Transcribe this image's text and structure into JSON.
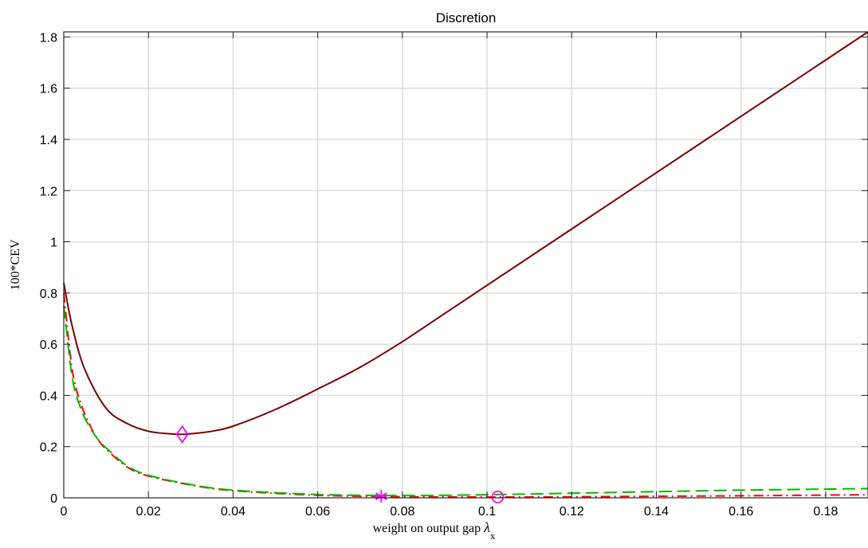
{
  "chart_data": {
    "type": "line",
    "title": "Discretion",
    "xlabel_prefix": "weight on output gap ",
    "xlabel_symbol": "λ",
    "xlabel_subscript": "x",
    "ylabel": "100*CEV",
    "xlim": [
      0,
      0.19
    ],
    "ylim": [
      0,
      1.82
    ],
    "grid": true,
    "xticks": [
      0,
      0.02,
      0.04,
      0.06,
      0.08,
      0.1,
      0.12,
      0.14,
      0.16,
      0.18
    ],
    "xtick_labels": [
      "0",
      "0.02",
      "0.04",
      "0.06",
      "0.08",
      "0.1",
      "0.12",
      "0.14",
      "0.16",
      "0.18"
    ],
    "yticks": [
      0,
      0.2,
      0.4,
      0.6,
      0.8,
      1,
      1.2,
      1.4,
      1.6,
      1.8
    ],
    "ytick_labels": [
      "0",
      "0.2",
      "0.4",
      "0.6",
      "0.8",
      "1",
      "1.2",
      "1.4",
      "1.6",
      "1.8"
    ],
    "series": [
      {
        "style": "solid",
        "color": "#7a0000",
        "x": [
          0,
          0.002,
          0.005,
          0.01,
          0.015,
          0.02,
          0.025,
          0.028,
          0.03,
          0.035,
          0.04,
          0.05,
          0.06,
          0.07,
          0.08,
          0.09,
          0.1,
          0.12,
          0.14,
          0.16,
          0.18,
          0.19
        ],
        "y": [
          0.84,
          0.67,
          0.5,
          0.35,
          0.29,
          0.26,
          0.25,
          0.248,
          0.25,
          0.26,
          0.28,
          0.345,
          0.425,
          0.51,
          0.61,
          0.72,
          0.83,
          1.05,
          1.27,
          1.49,
          1.71,
          1.82
        ]
      },
      {
        "style": "dashdot",
        "color": "#ff0000",
        "x": [
          0,
          0.002,
          0.004,
          0.006,
          0.008,
          0.01,
          0.015,
          0.02,
          0.03,
          0.04,
          0.06,
          0.08,
          0.1,
          0.12,
          0.14,
          0.16,
          0.19
        ],
        "y": [
          0.8,
          0.5,
          0.37,
          0.29,
          0.23,
          0.19,
          0.12,
          0.085,
          0.05,
          0.028,
          0.01,
          0.004,
          0.003,
          0.004,
          0.006,
          0.008,
          0.012
        ]
      },
      {
        "style": "dashed",
        "color": "#00bb00",
        "x": [
          0,
          0.002,
          0.004,
          0.006,
          0.008,
          0.01,
          0.015,
          0.02,
          0.03,
          0.04,
          0.06,
          0.08,
          0.1,
          0.12,
          0.14,
          0.16,
          0.19
        ],
        "y": [
          0.75,
          0.47,
          0.35,
          0.28,
          0.23,
          0.195,
          0.125,
          0.088,
          0.052,
          0.03,
          0.013,
          0.009,
          0.012,
          0.018,
          0.024,
          0.03,
          0.036
        ]
      }
    ],
    "markers": [
      {
        "shape": "diamond",
        "x": 0.028,
        "y": 0.248,
        "color": "#ff00ff"
      },
      {
        "shape": "asterisk",
        "x": 0.075,
        "y": 0.006,
        "color": "#ff00ff"
      },
      {
        "shape": "circle",
        "x": 0.1025,
        "y": 0.003,
        "color": "#ff00ff"
      }
    ]
  }
}
